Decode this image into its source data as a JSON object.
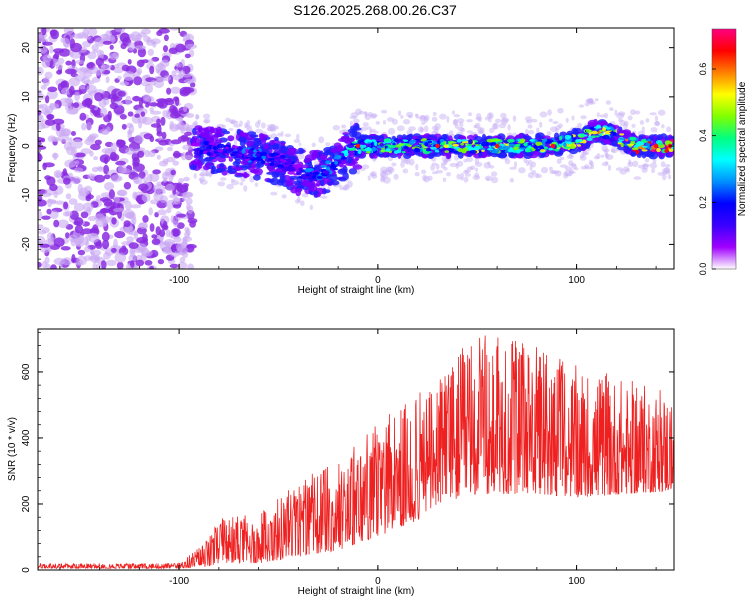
{
  "title": "S126.2025.268.00.26.C37",
  "chart_data": [
    {
      "type": "heatmap",
      "xlabel": "Height of straight line (km)",
      "ylabel": "Frequency (Hz)",
      "xlim": [
        -171,
        149
      ],
      "ylim": [
        -25,
        24
      ],
      "x_ticks": [
        -100,
        0,
        100
      ],
      "x_tick_labels": [
        "-100",
        "0",
        "100"
      ],
      "y_ticks": [
        -20,
        -10,
        0,
        10,
        20
      ],
      "y_tick_labels": [
        "-20",
        "-10",
        "0",
        "10",
        "20"
      ],
      "colorbar": {
        "label": "Normalized spectral amplitude",
        "range": [
          0,
          0.72
        ],
        "ticks": [
          0.0,
          0.2,
          0.4,
          0.6
        ],
        "tick_labels": [
          "0.0",
          "0.2",
          "0.4",
          "0.6"
        ],
        "colors": [
          "#ffffff",
          "#a000ff",
          "#3a00ff",
          "#0000ff",
          "#0090ff",
          "#00ffff",
          "#00ff80",
          "#80ff00",
          "#ffff00",
          "#ff8000",
          "#ff0000",
          "#ff0080"
        ]
      },
      "noise_region": {
        "x_range": [
          -171,
          -93
        ],
        "freq_range": [
          -25,
          24
        ]
      },
      "signal_band": {
        "x": [
          -93,
          -80,
          -60,
          -50,
          -40,
          -30,
          -20,
          -10,
          0,
          20,
          40,
          60,
          80,
          100,
          110,
          120,
          130,
          149
        ],
        "center_hz": [
          0,
          -1,
          -2,
          -3,
          -5,
          -6,
          -3,
          0,
          0,
          0,
          0,
          0,
          0,
          1,
          3,
          2,
          0,
          0
        ],
        "peak_amplitude": [
          0.15,
          0.2,
          0.25,
          0.2,
          0.2,
          0.25,
          0.3,
          0.4,
          0.45,
          0.45,
          0.5,
          0.5,
          0.45,
          0.5,
          0.55,
          0.5,
          0.6,
          0.7
        ]
      }
    },
    {
      "type": "line",
      "xlabel": "Height of straight line (km)",
      "ylabel": "SNR (10 * v/v)",
      "xlim": [
        -171,
        149
      ],
      "ylim": [
        0,
        730
      ],
      "x_ticks": [
        -100,
        0,
        100
      ],
      "x_tick_labels": [
        "-100",
        "0",
        "100"
      ],
      "y_ticks": [
        0,
        200,
        400,
        600
      ],
      "y_tick_labels": [
        "0",
        "200",
        "400",
        "600"
      ],
      "color": "#ee2020",
      "envelope": {
        "x": [
          -171,
          -100,
          -85,
          -80,
          -60,
          -40,
          -20,
          0,
          20,
          30,
          50,
          80,
          100,
          149
        ],
        "min": [
          5,
          5,
          10,
          20,
          20,
          40,
          60,
          100,
          150,
          200,
          230,
          230,
          220,
          240
        ],
        "max": [
          20,
          20,
          100,
          160,
          170,
          280,
          330,
          450,
          530,
          600,
          720,
          680,
          620,
          540
        ]
      }
    }
  ]
}
